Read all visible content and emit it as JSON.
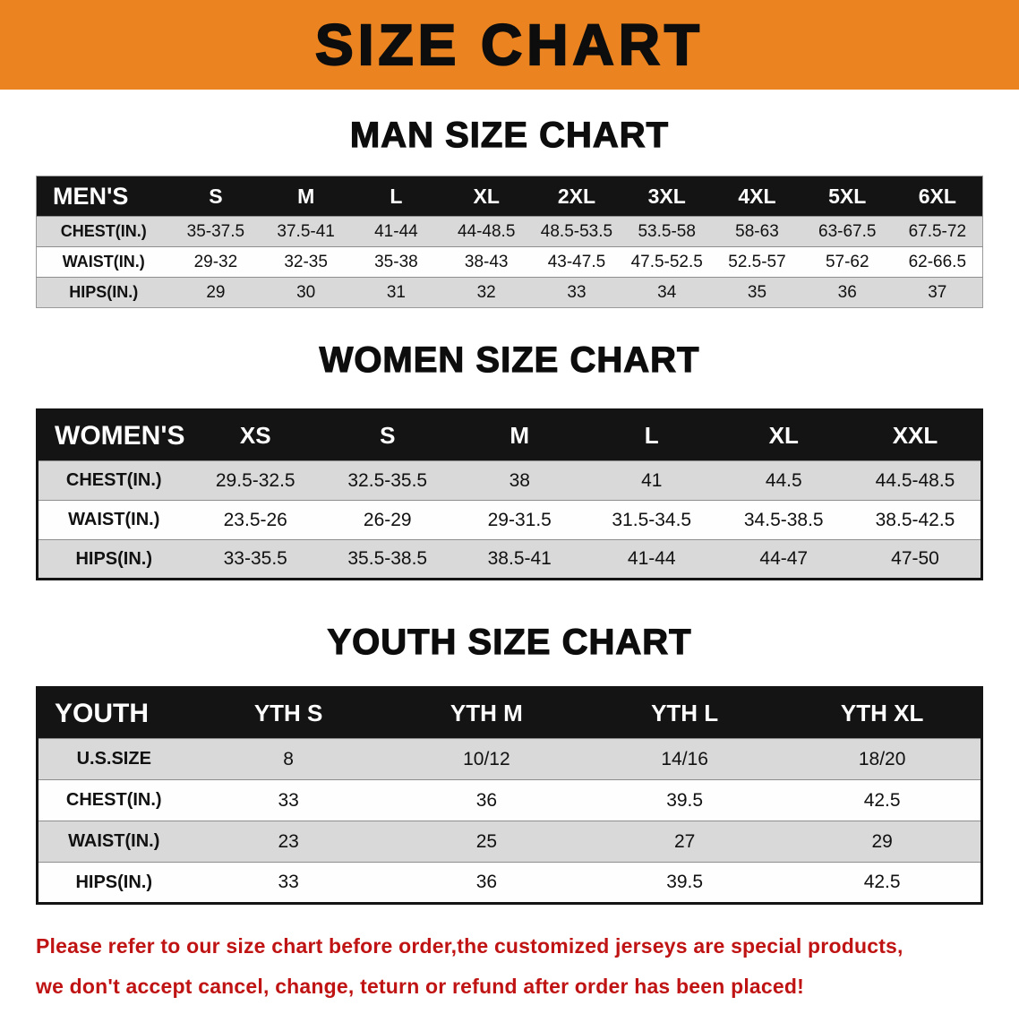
{
  "banner": {
    "title": "SIZE CHART"
  },
  "colors": {
    "banner_bg": "#EB8420",
    "header_bg": "#141414",
    "row_gray": "#D9D9D9",
    "note_red": "#C01414",
    "ink": "#0D0D0D"
  },
  "sections": [
    {
      "heading": "MAN SIZE CHART",
      "table": {
        "header": [
          "MEN'S",
          "S",
          "M",
          "L",
          "XL",
          "2XL",
          "3XL",
          "4XL",
          "5XL",
          "6XL"
        ],
        "rows": [
          {
            "label": "CHEST(IN.)",
            "values": [
              "35-37.5",
              "37.5-41",
              "41-44",
              "44-48.5",
              "48.5-53.5",
              "53.5-58",
              "58-63",
              "63-67.5",
              "67.5-72"
            ]
          },
          {
            "label": "WAIST(IN.)",
            "values": [
              "29-32",
              "32-35",
              "35-38",
              "38-43",
              "43-47.5",
              "47.5-52.5",
              "52.5-57",
              "57-62",
              "62-66.5"
            ]
          },
          {
            "label": "HIPS(IN.)",
            "values": [
              "29",
              "30",
              "31",
              "32",
              "33",
              "34",
              "35",
              "36",
              "37"
            ]
          }
        ]
      }
    },
    {
      "heading": "WOMEN SIZE CHART",
      "table": {
        "header": [
          "WOMEN'S",
          "XS",
          "S",
          "M",
          "L",
          "XL",
          "XXL"
        ],
        "rows": [
          {
            "label": "CHEST(IN.)",
            "values": [
              "29.5-32.5",
              "32.5-35.5",
              "38",
              "41",
              "44.5",
              "44.5-48.5"
            ]
          },
          {
            "label": "WAIST(IN.)",
            "values": [
              "23.5-26",
              "26-29",
              "29-31.5",
              "31.5-34.5",
              "34.5-38.5",
              "38.5-42.5"
            ]
          },
          {
            "label": "HIPS(IN.)",
            "values": [
              "33-35.5",
              "35.5-38.5",
              "38.5-41",
              "41-44",
              "44-47",
              "47-50"
            ]
          }
        ]
      }
    },
    {
      "heading": "YOUTH SIZE CHART",
      "table": {
        "header": [
          "YOUTH",
          "YTH S",
          "YTH M",
          "YTH L",
          "YTH XL"
        ],
        "rows": [
          {
            "label": "U.S.SIZE",
            "values": [
              "8",
              "10/12",
              "14/16",
              "18/20"
            ]
          },
          {
            "label": "CHEST(IN.)",
            "values": [
              "33",
              "36",
              "39.5",
              "42.5"
            ]
          },
          {
            "label": "WAIST(IN.)",
            "values": [
              "23",
              "25",
              "27",
              "29"
            ]
          },
          {
            "label": "HIPS(IN.)",
            "values": [
              "33",
              "36",
              "39.5",
              "42.5"
            ]
          }
        ]
      }
    }
  ],
  "footer_note": {
    "line1": "Please refer to our size chart before order,the customized jerseys are special products,",
    "line2": "we don't accept cancel, change, teturn or refund after order has been placed!"
  }
}
